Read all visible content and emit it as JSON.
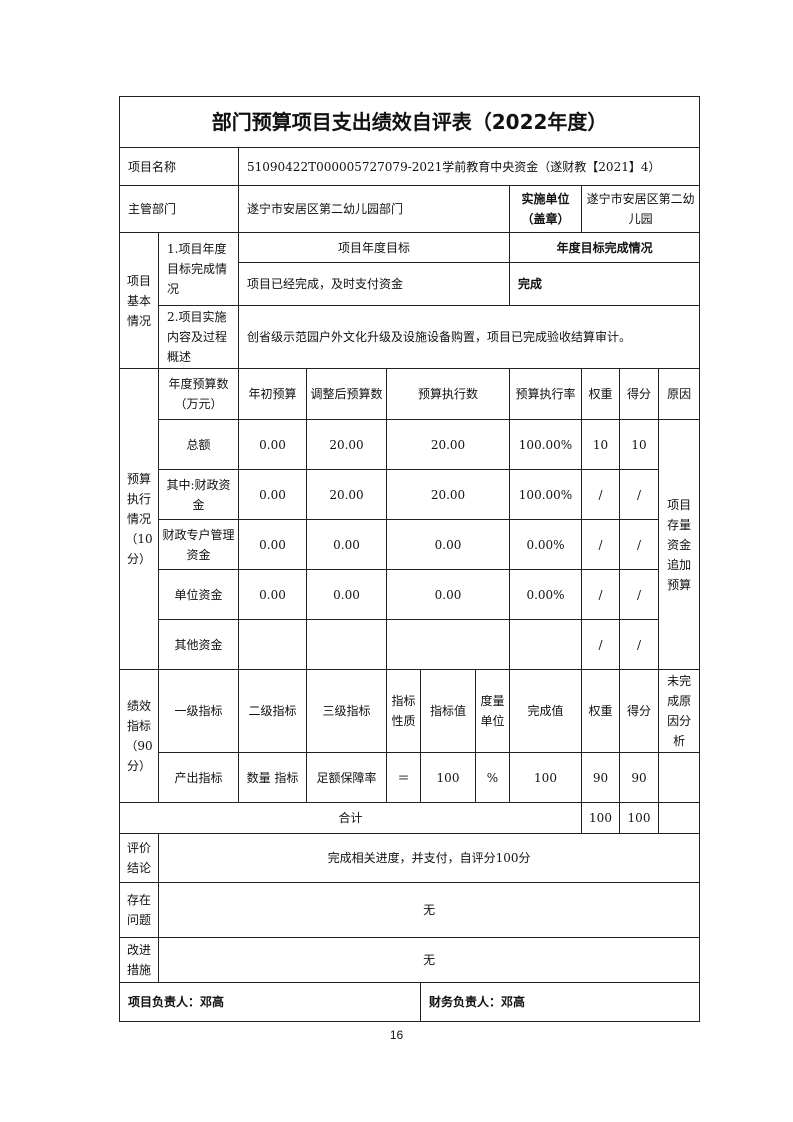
{
  "title": "部门预算项目支出绩效自评表（2022年度）",
  "project_name_label": "项目名称",
  "project_name": "51090422T000005727079-2021学前教育中央资金（遂财教【2021】4）",
  "dept_label": "主管部门",
  "dept": "遂宁市安居区第二幼儿园部门",
  "impl_label": "实施单位（盖章）",
  "impl": "遂宁市安居区第二幼儿园",
  "basic": {
    "label": "项目基本情况",
    "goal_label": "1.项目年度目标完成情况",
    "goal_header": "项目年度目标",
    "done_header": "年度目标完成情况",
    "goal": "项目已经完成，及时支付资金",
    "done": "完成",
    "content_label": "2.项目实施内容及过程概述",
    "content": "创省级示范园户外文化升级及设施设备购置，项目已完成验收结算审计。"
  },
  "budget": {
    "label": "预算执行情况（10分）",
    "headers": [
      "年度预算数（万元）",
      "年初预算",
      "调整后预算数",
      "预算执行数",
      "预算执行率",
      "权重",
      "得分",
      "原因"
    ],
    "rows": [
      [
        "总额",
        "0.00",
        "20.00",
        "20.00",
        "100.00%",
        "10",
        "10"
      ],
      [
        "其中:财政资金",
        "0.00",
        "20.00",
        "20.00",
        "100.00%",
        "/",
        "/"
      ],
      [
        "财政专户管理资金",
        "0.00",
        "0.00",
        "0.00",
        "0.00%",
        "/",
        "/"
      ],
      [
        "单位资金",
        "0.00",
        "0.00",
        "0.00",
        "0.00%",
        "/",
        "/"
      ],
      [
        "其他资金",
        "",
        "",
        "",
        "",
        "/",
        "/"
      ]
    ],
    "reason": "项目存量资金追加预算"
  },
  "perf": {
    "label": "绩效指标（90分）",
    "headers": [
      "一级指标",
      "二级指标",
      "三级指标",
      "指标性质",
      "指标值",
      "度量单位",
      "完成值",
      "权重",
      "得分",
      "未完成原因分析"
    ],
    "row": [
      "产出指标",
      "数量 指标",
      "足额保障率",
      "＝",
      "100",
      "%",
      "100",
      "90",
      "90",
      ""
    ]
  },
  "total": {
    "label": "合计",
    "weight": "100",
    "score": "100"
  },
  "eval": {
    "label": "评价结论",
    "text": "完成相关进度，并支付，自评分100分"
  },
  "issues": {
    "label": "存在问题",
    "text": "无"
  },
  "improve": {
    "label": "改进措施",
    "text": "无"
  },
  "owner": "项目负责人：邓高",
  "finance": "财务负责人：邓高",
  "page_number": "16"
}
